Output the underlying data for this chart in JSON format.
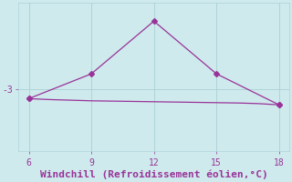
{
  "xlabel": "Windchill (Refroidissement éolien,°C)",
  "ylabel": "",
  "bg_color": "#ceeaec",
  "grid_color": "#aed4d8",
  "line_color": "#993399",
  "line1_x": [
    6,
    9,
    12,
    15,
    18
  ],
  "line1_y": [
    -3.3,
    -2.5,
    -0.8,
    -2.5,
    -3.5
  ],
  "line2_x": [
    6,
    7,
    8,
    9,
    10,
    11,
    12,
    13,
    14,
    15,
    16,
    17,
    18
  ],
  "line2_y": [
    -3.3,
    -3.33,
    -3.35,
    -3.37,
    -3.38,
    -3.39,
    -3.4,
    -3.41,
    -3.42,
    -3.43,
    -3.44,
    -3.46,
    -3.5
  ],
  "xlim": [
    5.5,
    18.5
  ],
  "ylim": [
    -5.0,
    -0.2
  ],
  "xticks": [
    6,
    9,
    12,
    15,
    18
  ],
  "yticks": [
    -3
  ],
  "ytick_labels": [
    "-3"
  ],
  "marker": "D",
  "markersize": 3,
  "linewidth": 0.9,
  "tick_fontsize": 7,
  "xlabel_fontsize": 8
}
